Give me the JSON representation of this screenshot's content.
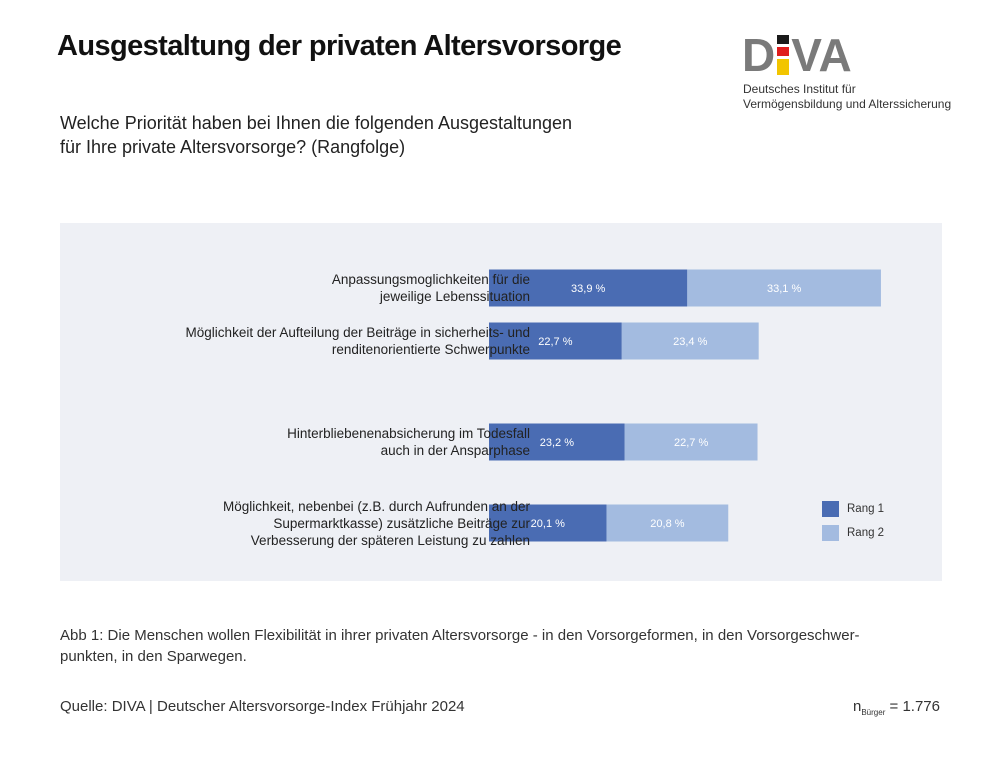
{
  "header": {
    "title": "Ausgestaltung der privaten Altersvorsorge",
    "subtitle_line1": "Welche Priorität haben bei Ihnen die folgenden Ausgestaltungen",
    "subtitle_line2": "für Ihre private Altersvorsorge? (Rangfolge)"
  },
  "logo": {
    "letters_left": "D",
    "letters_right": "VA",
    "name_line1": "Deutsches Institut für",
    "name_line2": "Vermögensbildung und Alterssicherung"
  },
  "chart_data": {
    "type": "bar",
    "orientation": "horizontal",
    "stacked": true,
    "unit": "%",
    "categories": [
      [
        "Anpassungsmoglichkeiten für die",
        "jeweilige Lebenssituation"
      ],
      [
        "Möglichkeit der Aufteilung der Beiträge in sicherheits- und",
        "renditenorientierte Schwerpunkte"
      ],
      [
        "Hinterbliebenenabsicherung im Todesfall",
        "auch in der Ansparphase"
      ],
      [
        "Möglichkeit, nebenbei (z.B. durch Aufrunden an der",
        "Supermarktkasse) zusätzliche Beiträge zur",
        "Verbesserung der späteren Leistung zu zahlen"
      ]
    ],
    "series": [
      {
        "name": "Rang 1",
        "color": "#4a6cb3",
        "values": [
          33.9,
          22.7,
          23.2,
          20.1
        ],
        "labels": [
          "33,9 %",
          "22,7 %",
          "23,2 %",
          "20,1 %"
        ]
      },
      {
        "name": "Rang 2",
        "color": "#a3bbe0",
        "values": [
          33.1,
          23.4,
          22.7,
          20.8
        ],
        "labels": [
          "33,1 %",
          "23,4 %",
          "22,7 %",
          "20,8 %"
        ]
      }
    ],
    "grid": false,
    "legend_position": "right",
    "background": "#eef0f5"
  },
  "caption": {
    "line1": "Abb 1: Die Menschen wollen Flexibilität in ihrer privaten Altersvorsorge - in den Vorsorgeformen, in den Vorsorgeschwer-",
    "line2": "punkten, in den Sparwegen."
  },
  "footer": {
    "source": "Quelle: DIVA | Deutscher Altersvorsorge-Index Frühjahr 2024",
    "sample_prefix": "n",
    "sample_sub": "Bürger",
    "sample_value": "= 1.776"
  }
}
